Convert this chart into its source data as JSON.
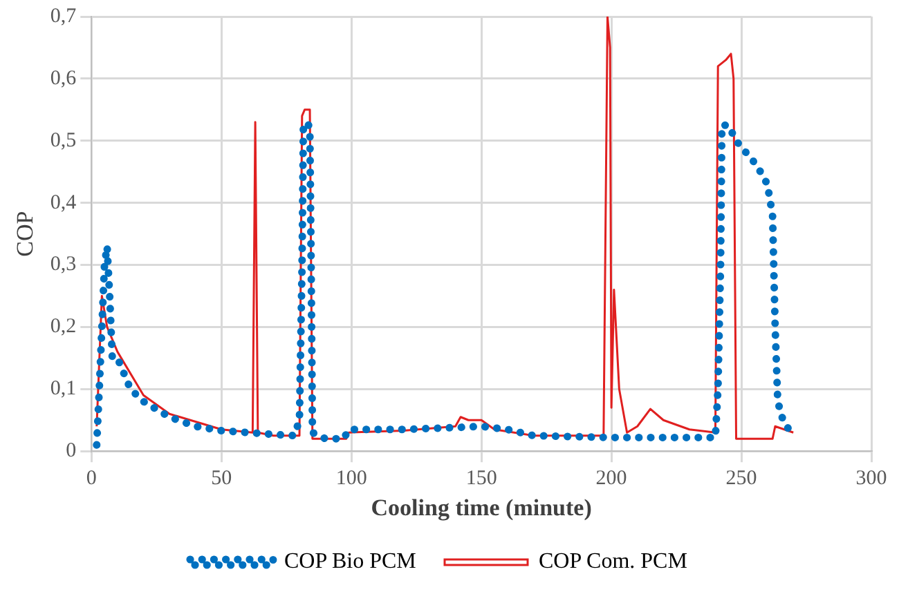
{
  "chart_data": {
    "type": "line",
    "xlabel": "Cooling time (minute)",
    "ylabel": "COP",
    "xlim": [
      0,
      300
    ],
    "xticks": [
      0,
      50,
      100,
      150,
      200,
      250,
      300
    ],
    "ylim": [
      0,
      0.7
    ],
    "yticks": [
      0,
      {
        "value": 0.1,
        "label": "0,1"
      },
      {
        "value": 0.2,
        "label": "0,2"
      },
      {
        "value": 0.3,
        "label": "0,3"
      },
      {
        "value": 0.4,
        "label": "0,4"
      },
      {
        "value": 0.5,
        "label": "0,5"
      },
      {
        "value": 0.6,
        "label": "0,6"
      },
      {
        "value": 0.7,
        "label": "0,7"
      }
    ],
    "grid": true,
    "legend": "bottom",
    "marker": "none",
    "series": [
      {
        "name": "COP Bio PCM",
        "color": "#0070c0",
        "line_style": "dotted",
        "x": [
          2,
          3,
          4,
          5,
          6,
          7,
          8,
          10,
          15,
          20,
          30,
          40,
          50,
          60,
          70,
          78,
          80,
          81,
          81.5,
          83,
          84,
          84.5,
          85,
          90,
          97,
          99,
          120,
          140,
          150,
          160,
          170,
          200,
          240,
          241,
          242,
          242.5,
          245,
          248,
          252,
          256,
          260,
          262,
          263,
          264,
          266,
          269
        ],
        "values": [
          0.01,
          0.1,
          0.2,
          0.3,
          0.33,
          0.25,
          0.15,
          0.15,
          0.1,
          0.08,
          0.055,
          0.04,
          0.033,
          0.03,
          0.027,
          0.025,
          0.05,
          0.3,
          0.52,
          0.53,
          0.52,
          0.3,
          0.03,
          0.02,
          0.02,
          0.035,
          0.035,
          0.038,
          0.04,
          0.035,
          0.025,
          0.022,
          0.022,
          0.1,
          0.3,
          0.525,
          0.525,
          0.5,
          0.48,
          0.46,
          0.43,
          0.38,
          0.2,
          0.08,
          0.05,
          0.03
        ]
      },
      {
        "name": "COP Com. PCM",
        "color": "#e02020",
        "line_style": "solid",
        "x": [
          2,
          4,
          6,
          10,
          20,
          30,
          50,
          62,
          63,
          64,
          70,
          80,
          81,
          82,
          84,
          85,
          98,
          99,
          120,
          140,
          142,
          145,
          150,
          155,
          170,
          197,
          198.5,
          199.5,
          200,
          201,
          203,
          206,
          210,
          215,
          220,
          230,
          240,
          241,
          244,
          246,
          247,
          248,
          262,
          263,
          270
        ],
        "values": [
          0.04,
          0.25,
          0.2,
          0.16,
          0.09,
          0.06,
          0.035,
          0.03,
          0.53,
          0.03,
          0.025,
          0.025,
          0.54,
          0.55,
          0.55,
          0.02,
          0.02,
          0.03,
          0.033,
          0.04,
          0.055,
          0.05,
          0.05,
          0.035,
          0.025,
          0.025,
          0.7,
          0.65,
          0.07,
          0.26,
          0.1,
          0.03,
          0.04,
          0.068,
          0.05,
          0.035,
          0.03,
          0.62,
          0.63,
          0.64,
          0.6,
          0.02,
          0.02,
          0.04,
          0.03
        ]
      }
    ]
  }
}
